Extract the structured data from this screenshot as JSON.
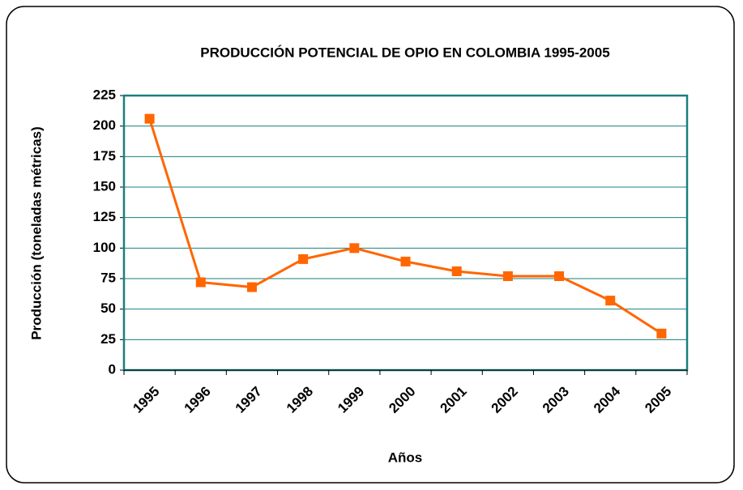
{
  "chart_data": {
    "type": "line",
    "title": "PRODUCCIÓN POTENCIAL DE OPIO EN COLOMBIA 1995-2005",
    "x_label": "Años",
    "y_label": "Producción (toneladas métricas)",
    "categories": [
      "1995",
      "1996",
      "1997",
      "1998",
      "1999",
      "2000",
      "2001",
      "2002",
      "2003",
      "2004",
      "2005"
    ],
    "series": [
      {
        "name": "Producción",
        "color": "#ff6600",
        "values": [
          206,
          72,
          68,
          91,
          100,
          89,
          81,
          77,
          77,
          57,
          30
        ]
      }
    ],
    "ylim": [
      0,
      225
    ],
    "yticks": [
      0,
      25,
      50,
      75,
      100,
      125,
      150,
      175,
      200,
      225
    ],
    "grid": true
  }
}
